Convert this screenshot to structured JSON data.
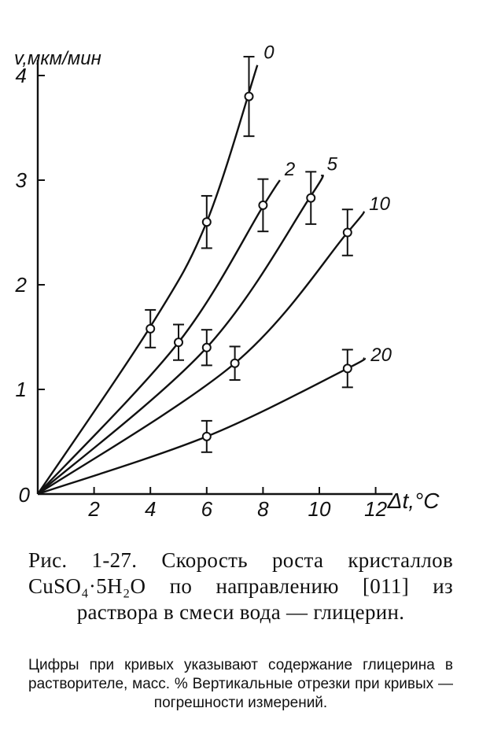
{
  "chart_data": {
    "type": "line",
    "ylabel": "v,мкм/мин",
    "xlabel": "Δt,°C",
    "origin_label": "0",
    "xlim": [
      0,
      12
    ],
    "ylim": [
      0,
      4
    ],
    "x_ticks": [
      "2",
      "4",
      "6",
      "8",
      "10",
      "12"
    ],
    "y_ticks": [
      "1",
      "2",
      "3",
      "4"
    ],
    "series": [
      {
        "name": "0",
        "curve": [
          [
            0,
            0
          ],
          [
            4,
            1.6
          ],
          [
            6,
            2.6
          ],
          [
            7.8,
            4.1
          ]
        ],
        "points": [
          {
            "x": 4,
            "y": 1.58,
            "err": 0.18
          },
          {
            "x": 6,
            "y": 2.6,
            "err": 0.25
          },
          {
            "x": 7.5,
            "y": 3.8,
            "err": 0.38
          }
        ]
      },
      {
        "name": "2",
        "curve": [
          [
            0,
            0
          ],
          [
            5,
            1.45
          ],
          [
            8,
            2.75
          ],
          [
            8.6,
            3.0
          ]
        ],
        "points": [
          {
            "x": 5,
            "y": 1.45,
            "err": 0.17
          },
          {
            "x": 8,
            "y": 2.76,
            "err": 0.25
          }
        ]
      },
      {
        "name": "5",
        "curve": [
          [
            0,
            0
          ],
          [
            6,
            1.4
          ],
          [
            9.7,
            2.85
          ],
          [
            10.1,
            3.05
          ]
        ],
        "points": [
          {
            "x": 6,
            "y": 1.4,
            "err": 0.17
          },
          {
            "x": 9.7,
            "y": 2.83,
            "err": 0.25
          }
        ]
      },
      {
        "name": "10",
        "curve": [
          [
            0,
            0
          ],
          [
            7,
            1.25
          ],
          [
            11,
            2.5
          ],
          [
            11.6,
            2.7
          ]
        ],
        "points": [
          {
            "x": 7,
            "y": 1.25,
            "err": 0.16
          },
          {
            "x": 11,
            "y": 2.5,
            "err": 0.22
          }
        ]
      },
      {
        "name": "20",
        "curve": [
          [
            0,
            0
          ],
          [
            6,
            0.55
          ],
          [
            11,
            1.2
          ],
          [
            11.6,
            1.3
          ]
        ],
        "points": [
          {
            "x": 6,
            "y": 0.55,
            "err": 0.15
          },
          {
            "x": 11,
            "y": 1.2,
            "err": 0.18
          }
        ]
      }
    ]
  },
  "caption": {
    "title": "Рис. 1-27. Скорость роста кристаллов CuSO₄·5H₂O по направлению [011] из раствора в смеси вода — глицерин.",
    "note": "Цифры при кривых указывают содержание глицерина в растворителе, масс. % Вертикальные отрезки при кривых — погрешности измерений."
  }
}
